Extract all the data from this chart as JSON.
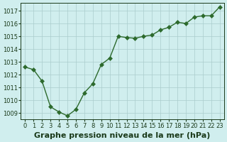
{
  "x": [
    0,
    1,
    2,
    3,
    4,
    5,
    6,
    7,
    8,
    9,
    10,
    11,
    12,
    13,
    14,
    15,
    16,
    17,
    18,
    19,
    20,
    21,
    22,
    23
  ],
  "y": [
    1012.6,
    1012.4,
    1011.5,
    1009.5,
    1009.1,
    1008.8,
    1009.3,
    1010.6,
    1011.3,
    1012.8,
    1013.3,
    1015.0,
    1014.9,
    1014.85,
    1015.0,
    1015.1,
    1015.5,
    1015.7,
    1016.1,
    1016.0,
    1016.5,
    1016.6,
    1016.6,
    1017.3
  ],
  "line_color": "#2d6a2d",
  "marker": "D",
  "marker_size": 3,
  "bg_color": "#d0eeee",
  "grid_color": "#aacccc",
  "title": "Graphe pression niveau de la mer (hPa)",
  "xlabel_ticks": [
    "0",
    "1",
    "2",
    "3",
    "4",
    "5",
    "6",
    "7",
    "8",
    "9",
    "10",
    "11",
    "12",
    "13",
    "14",
    "15",
    "16",
    "17",
    "18",
    "19",
    "20",
    "21",
    "22",
    "23"
  ],
  "yticks": [
    1009,
    1010,
    1011,
    1012,
    1013,
    1014,
    1015,
    1016,
    1017
  ],
  "ylim": [
    1008.5,
    1017.6
  ],
  "xlim": [
    -0.5,
    23.5
  ],
  "title_fontsize": 8,
  "tick_fontsize": 6.0,
  "title_color": "#1a3a1a",
  "tick_color": "#1a3a1a"
}
